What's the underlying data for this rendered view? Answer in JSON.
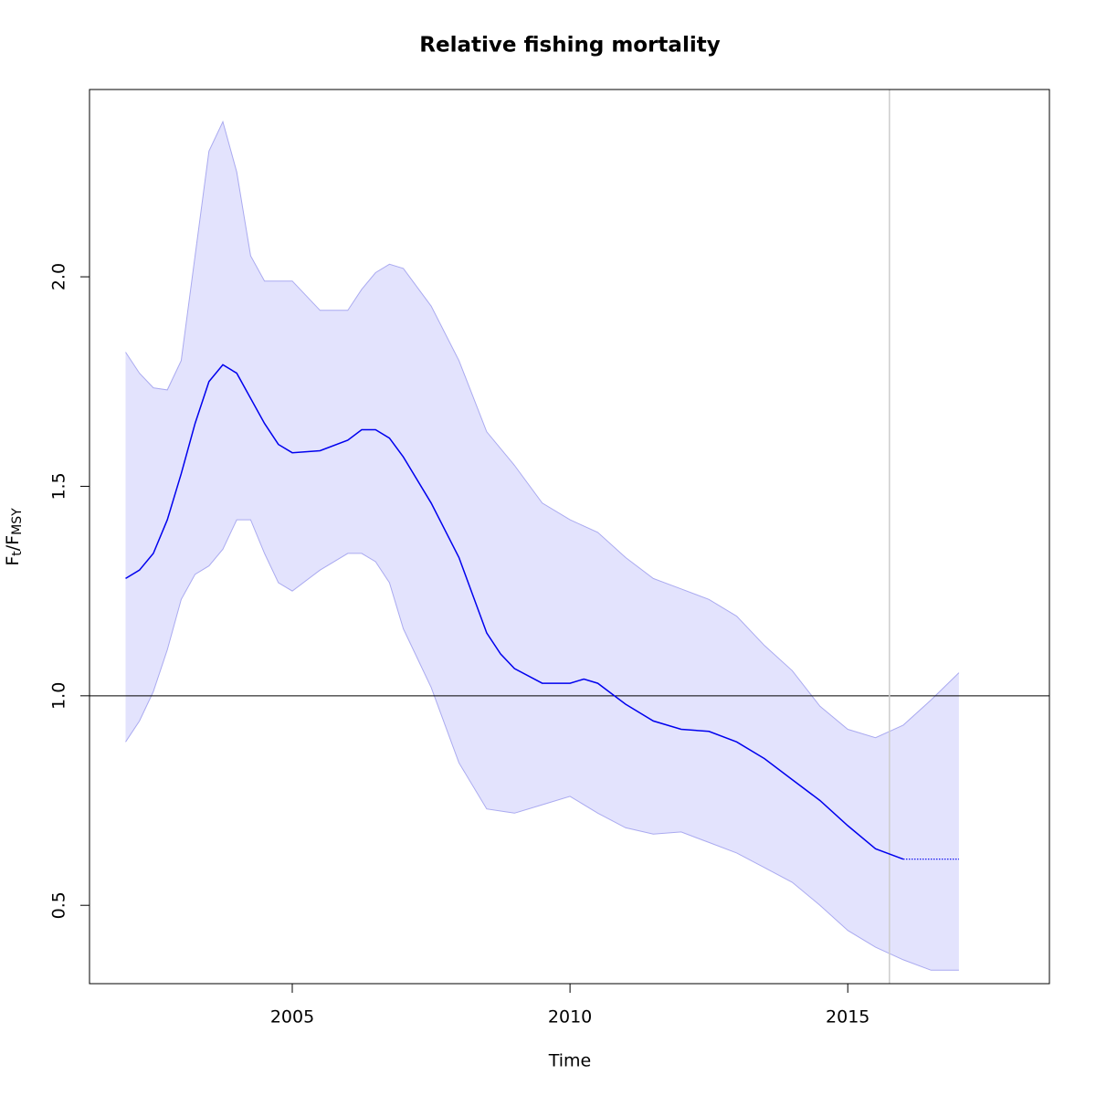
{
  "chart_data": {
    "type": "line",
    "title": "Relative fishing mortality",
    "xlabel": "Time",
    "ylabel": [
      "F",
      "t",
      "/F",
      "MSY"
    ],
    "xlim": [
      2001.35,
      2018.63
    ],
    "ylim": [
      0.313,
      2.447
    ],
    "xticks": [
      2005,
      2010,
      2015
    ],
    "yticks": [
      0.5,
      1.0,
      1.5,
      2.0
    ],
    "hline": 1,
    "vline": 2015.75,
    "line": {
      "color": "#0000ee",
      "x": [
        2002,
        2002.25,
        2002.5,
        2002.75,
        2003,
        2003.25,
        2003.5,
        2003.75,
        2004,
        2004.25,
        2004.5,
        2004.75,
        2005,
        2005.5,
        2006,
        2006.25,
        2006.5,
        2006.75,
        2007,
        2007.5,
        2008,
        2008.25,
        2008.5,
        2008.75,
        2009,
        2009.5,
        2010,
        2010.25,
        2010.5,
        2011,
        2011.5,
        2012,
        2012.5,
        2013,
        2013.5,
        2014,
        2014.5,
        2015,
        2015.5,
        2016
      ],
      "values": [
        1.28,
        1.3,
        1.34,
        1.42,
        1.53,
        1.65,
        1.75,
        1.79,
        1.77,
        1.71,
        1.65,
        1.6,
        1.58,
        1.585,
        1.61,
        1.635,
        1.635,
        1.615,
        1.57,
        1.46,
        1.33,
        1.24,
        1.15,
        1.1,
        1.065,
        1.03,
        1.03,
        1.04,
        1.03,
        0.98,
        0.94,
        0.92,
        0.915,
        0.89,
        0.85,
        0.8,
        0.75,
        0.69,
        0.635,
        0.61
      ]
    },
    "projection": {
      "color": "#0000ee",
      "x": [
        2016,
        2017
      ],
      "values": [
        0.61,
        0.61
      ]
    },
    "band": {
      "color": "#e3e3fd",
      "edge_color": "#aaaaf0",
      "x": [
        2002,
        2002.25,
        2002.5,
        2002.75,
        2003,
        2003.25,
        2003.5,
        2003.75,
        2004,
        2004.25,
        2004.5,
        2004.75,
        2005,
        2005.5,
        2006,
        2006.25,
        2006.5,
        2006.75,
        2007,
        2007.5,
        2008,
        2008.5,
        2009,
        2009.5,
        2010,
        2010.5,
        2011,
        2011.5,
        2012,
        2012.5,
        2013,
        2013.5,
        2014,
        2014.5,
        2015,
        2015.5,
        2016,
        2016.5,
        2017
      ],
      "upper": [
        1.82,
        1.77,
        1.735,
        1.73,
        1.8,
        2.05,
        2.3,
        2.37,
        2.25,
        2.05,
        1.99,
        1.99,
        1.99,
        1.92,
        1.92,
        1.97,
        2.01,
        2.03,
        2.02,
        1.93,
        1.8,
        1.63,
        1.55,
        1.46,
        1.42,
        1.39,
        1.33,
        1.28,
        1.255,
        1.23,
        1.19,
        1.12,
        1.06,
        0.975,
        0.92,
        0.9,
        0.93,
        0.99,
        1.055
      ],
      "lower": [
        0.89,
        0.94,
        1.01,
        1.11,
        1.23,
        1.29,
        1.31,
        1.35,
        1.42,
        1.42,
        1.34,
        1.27,
        1.25,
        1.3,
        1.34,
        1.34,
        1.32,
        1.27,
        1.16,
        1.02,
        0.84,
        0.73,
        0.72,
        0.74,
        0.76,
        0.72,
        0.685,
        0.67,
        0.675,
        0.65,
        0.625,
        0.59,
        0.555,
        0.5,
        0.44,
        0.4,
        0.37,
        0.345,
        0.345
      ]
    }
  }
}
